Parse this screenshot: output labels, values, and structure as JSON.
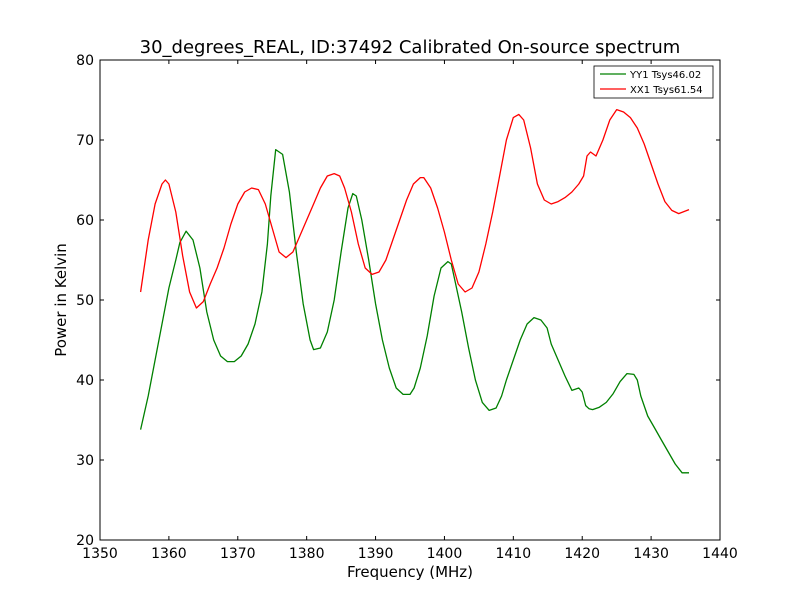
{
  "chart_data": {
    "type": "line",
    "title": "30_degrees_REAL, ID:37492 Calibrated On-source spectrum",
    "xlabel": "Frequency (MHz)",
    "ylabel": "Power in Kelvin",
    "xlim": [
      1350,
      1440
    ],
    "ylim": [
      20,
      80
    ],
    "xticks": [
      1350,
      1360,
      1370,
      1380,
      1390,
      1400,
      1410,
      1420,
      1430,
      1440
    ],
    "yticks": [
      20,
      30,
      40,
      50,
      60,
      70,
      80
    ],
    "grid": false,
    "legend_position": "top-right",
    "series": [
      {
        "name": "YY1 Tsys46.02",
        "color": "#008000",
        "x": [
          1355.9,
          1357.0,
          1358.0,
          1359.0,
          1360.0,
          1361.0,
          1361.6,
          1362.5,
          1363.5,
          1364.5,
          1365.5,
          1366.5,
          1367.5,
          1368.5,
          1369.5,
          1370.5,
          1371.5,
          1372.5,
          1373.5,
          1374.3,
          1374.8,
          1375.5,
          1376.5,
          1377.5,
          1378.5,
          1379.5,
          1380.5,
          1381.0,
          1382.0,
          1383.0,
          1384.0,
          1385.0,
          1386.0,
          1386.7,
          1387.2,
          1388.0,
          1389.0,
          1390.0,
          1391.0,
          1392.0,
          1393.0,
          1394.0,
          1395.0,
          1395.6,
          1396.5,
          1397.5,
          1398.5,
          1399.5,
          1400.5,
          1401.0,
          1401.5,
          1402.5,
          1403.5,
          1404.5,
          1405.5,
          1406.5,
          1407.5,
          1408.3,
          1409.0,
          1410.0,
          1411.0,
          1412.0,
          1413.0,
          1414.0,
          1414.9,
          1415.5,
          1416.5,
          1417.5,
          1418.5,
          1419.5,
          1420.0,
          1420.5,
          1421.0,
          1421.5,
          1422.5,
          1423.5,
          1424.5,
          1425.5,
          1426.5,
          1427.5,
          1428.0,
          1428.5,
          1429.5,
          1430.5,
          1431.5,
          1432.5,
          1433.5,
          1434.5,
          1435.5
        ],
        "values": [
          33.8,
          38.0,
          42.5,
          47.0,
          51.5,
          55.0,
          57.2,
          58.6,
          57.5,
          54.0,
          48.5,
          45.0,
          43.0,
          42.3,
          42.3,
          43.0,
          44.5,
          47.0,
          51.0,
          57.0,
          63.0,
          68.8,
          68.2,
          63.5,
          56.0,
          49.5,
          45.0,
          43.8,
          44.0,
          46.0,
          50.0,
          56.0,
          61.5,
          63.3,
          63.0,
          60.0,
          55.0,
          49.5,
          45.0,
          41.5,
          39.0,
          38.2,
          38.2,
          39.0,
          41.5,
          45.5,
          50.5,
          54.0,
          54.8,
          54.5,
          52.5,
          48.5,
          44.0,
          40.0,
          37.2,
          36.2,
          36.5,
          38.0,
          40.0,
          42.5,
          45.0,
          47.0,
          47.8,
          47.5,
          46.5,
          44.5,
          42.5,
          40.5,
          38.7,
          39.0,
          38.5,
          36.8,
          36.4,
          36.3,
          36.6,
          37.2,
          38.3,
          39.8,
          40.8,
          40.7,
          40.0,
          38.0,
          35.5,
          34.0,
          32.5,
          31.0,
          29.5,
          28.4,
          28.4
        ],
        "values_note": ""
      },
      {
        "name": "XX1 Tsys61.54",
        "color": "#ff0000",
        "x": [
          1355.9,
          1357.0,
          1358.0,
          1359.0,
          1359.5,
          1360.0,
          1361.0,
          1362.0,
          1363.0,
          1364.0,
          1365.0,
          1366.0,
          1367.0,
          1368.0,
          1369.0,
          1370.0,
          1371.0,
          1372.0,
          1373.0,
          1374.0,
          1375.0,
          1376.0,
          1377.0,
          1378.0,
          1379.0,
          1380.0,
          1381.0,
          1382.0,
          1383.0,
          1384.0,
          1384.8,
          1385.5,
          1386.5,
          1387.5,
          1388.5,
          1389.5,
          1390.5,
          1391.5,
          1392.5,
          1393.5,
          1394.5,
          1395.5,
          1396.5,
          1397.0,
          1398.0,
          1399.0,
          1400.0,
          1401.0,
          1402.0,
          1403.0,
          1404.0,
          1405.0,
          1406.0,
          1407.0,
          1408.0,
          1409.0,
          1410.0,
          1410.8,
          1411.5,
          1412.5,
          1413.5,
          1414.5,
          1415.5,
          1416.5,
          1417.5,
          1418.5,
          1419.5,
          1420.2,
          1420.7,
          1421.2,
          1422.0,
          1423.0,
          1424.0,
          1425.0,
          1426.0,
          1427.0,
          1428.0,
          1429.0,
          1430.0,
          1431.0,
          1432.0,
          1433.0,
          1434.0,
          1435.5
        ],
        "values": [
          51.0,
          57.5,
          62.0,
          64.5,
          65.0,
          64.5,
          61.0,
          55.5,
          51.0,
          49.0,
          49.8,
          52.0,
          54.0,
          56.5,
          59.5,
          62.0,
          63.5,
          64.0,
          63.8,
          62.0,
          59.0,
          56.0,
          55.3,
          56.0,
          58.0,
          60.0,
          62.0,
          64.0,
          65.5,
          65.8,
          65.5,
          64.0,
          61.0,
          57.0,
          54.0,
          53.2,
          53.5,
          55.0,
          57.5,
          60.0,
          62.5,
          64.5,
          65.3,
          65.3,
          64.0,
          61.5,
          58.5,
          55.0,
          52.0,
          51.0,
          51.5,
          53.5,
          57.0,
          61.0,
          65.5,
          70.0,
          72.8,
          73.2,
          72.5,
          69.0,
          64.5,
          62.5,
          62.0,
          62.3,
          62.8,
          63.5,
          64.5,
          65.5,
          68.0,
          68.5,
          68.0,
          70.0,
          72.5,
          73.8,
          73.5,
          72.8,
          71.5,
          69.5,
          67.0,
          64.5,
          62.3,
          61.2,
          60.8,
          61.3
        ]
      }
    ]
  }
}
